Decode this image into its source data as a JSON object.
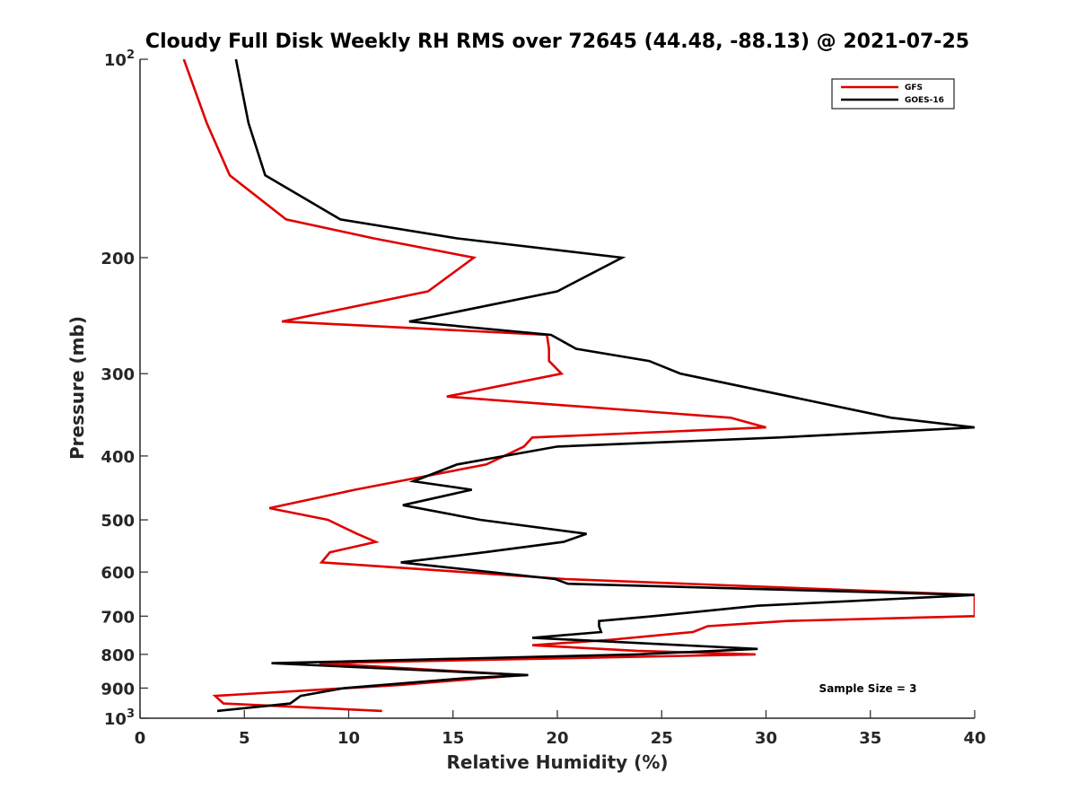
{
  "chart_data": {
    "type": "line",
    "title": "Cloudy Full Disk Weekly RH RMS over 72645 (44.48, -88.13) @ 2021-07-25",
    "xlabel": "Relative Humidity (%)",
    "ylabel": "Pressure (mb)",
    "xlim": [
      0,
      40
    ],
    "ylim": [
      100,
      1000
    ],
    "yscale": "log",
    "y_reversed": true,
    "x_ticks": [
      "0",
      "5",
      "10",
      "15",
      "20",
      "25",
      "30",
      "35",
      "40"
    ],
    "x_tick_values": [
      0,
      5,
      10,
      15,
      20,
      25,
      30,
      35,
      40
    ],
    "y_tick_values": [
      100,
      200,
      300,
      400,
      500,
      600,
      700,
      800,
      900,
      1000
    ],
    "y_ticks": [
      {
        "value": 100,
        "base": "10",
        "exp": "2"
      },
      {
        "value": 200,
        "label": "200"
      },
      {
        "value": 300,
        "label": "300"
      },
      {
        "value": 400,
        "label": "400"
      },
      {
        "value": 500,
        "label": "500"
      },
      {
        "value": 600,
        "label": "600"
      },
      {
        "value": 700,
        "label": "700"
      },
      {
        "value": 800,
        "label": "800"
      },
      {
        "value": 900,
        "label": "900"
      },
      {
        "value": 1000,
        "base": "10",
        "exp": "3"
      }
    ],
    "grid": false,
    "legend_position": "top-right",
    "series": [
      {
        "name": "GFS",
        "color": "#e00000",
        "points": [
          [
            2.1,
            100
          ],
          [
            3.2,
            125
          ],
          [
            4.3,
            150
          ],
          [
            7.0,
            175
          ],
          [
            11.2,
            187
          ],
          [
            16.0,
            200
          ],
          [
            13.8,
            225
          ],
          [
            6.8,
            250
          ],
          [
            19.5,
            262
          ],
          [
            19.6,
            275
          ],
          [
            19.6,
            287
          ],
          [
            20.2,
            300
          ],
          [
            14.7,
            325
          ],
          [
            28.3,
            350
          ],
          [
            30.0,
            362
          ],
          [
            18.8,
            375
          ],
          [
            18.4,
            387
          ],
          [
            16.6,
            412
          ],
          [
            10.3,
            450
          ],
          [
            6.2,
            480
          ],
          [
            9.0,
            500
          ],
          [
            10.4,
            525
          ],
          [
            11.3,
            540
          ],
          [
            9.1,
            560
          ],
          [
            8.7,
            580
          ],
          [
            20.4,
            615
          ],
          [
            40.0,
            650
          ],
          [
            40.0,
            700
          ],
          [
            31.0,
            712
          ],
          [
            27.2,
            725
          ],
          [
            26.5,
            740
          ],
          [
            22.6,
            760
          ],
          [
            18.8,
            775
          ],
          [
            23.8,
            790
          ],
          [
            29.5,
            800
          ],
          [
            8.6,
            825
          ],
          [
            18.3,
            860
          ],
          [
            12.5,
            890
          ],
          [
            3.6,
            925
          ],
          [
            4.0,
            950
          ],
          [
            11.6,
            975
          ]
        ]
      },
      {
        "name": "GOES-16",
        "color": "#000000",
        "points": [
          [
            4.6,
            100
          ],
          [
            5.2,
            125
          ],
          [
            6.0,
            150
          ],
          [
            9.6,
            175
          ],
          [
            15.2,
            187
          ],
          [
            23.1,
            200
          ],
          [
            20.0,
            225
          ],
          [
            12.9,
            250
          ],
          [
            19.7,
            262
          ],
          [
            20.9,
            275
          ],
          [
            24.4,
            287
          ],
          [
            25.9,
            300
          ],
          [
            36.0,
            350
          ],
          [
            40.0,
            362
          ],
          [
            30.6,
            375
          ],
          [
            20.0,
            387
          ],
          [
            15.2,
            412
          ],
          [
            13.1,
            437
          ],
          [
            15.9,
            450
          ],
          [
            12.6,
            475
          ],
          [
            16.3,
            500
          ],
          [
            21.4,
            525
          ],
          [
            20.3,
            540
          ],
          [
            16.5,
            560
          ],
          [
            12.5,
            580
          ],
          [
            19.9,
            615
          ],
          [
            20.5,
            625
          ],
          [
            40.0,
            650
          ],
          [
            29.6,
            675
          ],
          [
            24.6,
            700
          ],
          [
            22.0,
            712
          ],
          [
            22.0,
            725
          ],
          [
            22.1,
            740
          ],
          [
            18.8,
            755
          ],
          [
            29.6,
            785
          ],
          [
            23.8,
            800
          ],
          [
            6.3,
            825
          ],
          [
            18.6,
            860
          ],
          [
            15.5,
            870
          ],
          [
            9.8,
            900
          ],
          [
            7.7,
            925
          ],
          [
            7.2,
            950
          ],
          [
            3.7,
            975
          ]
        ]
      }
    ],
    "annotation": "Sample Size = 3"
  }
}
